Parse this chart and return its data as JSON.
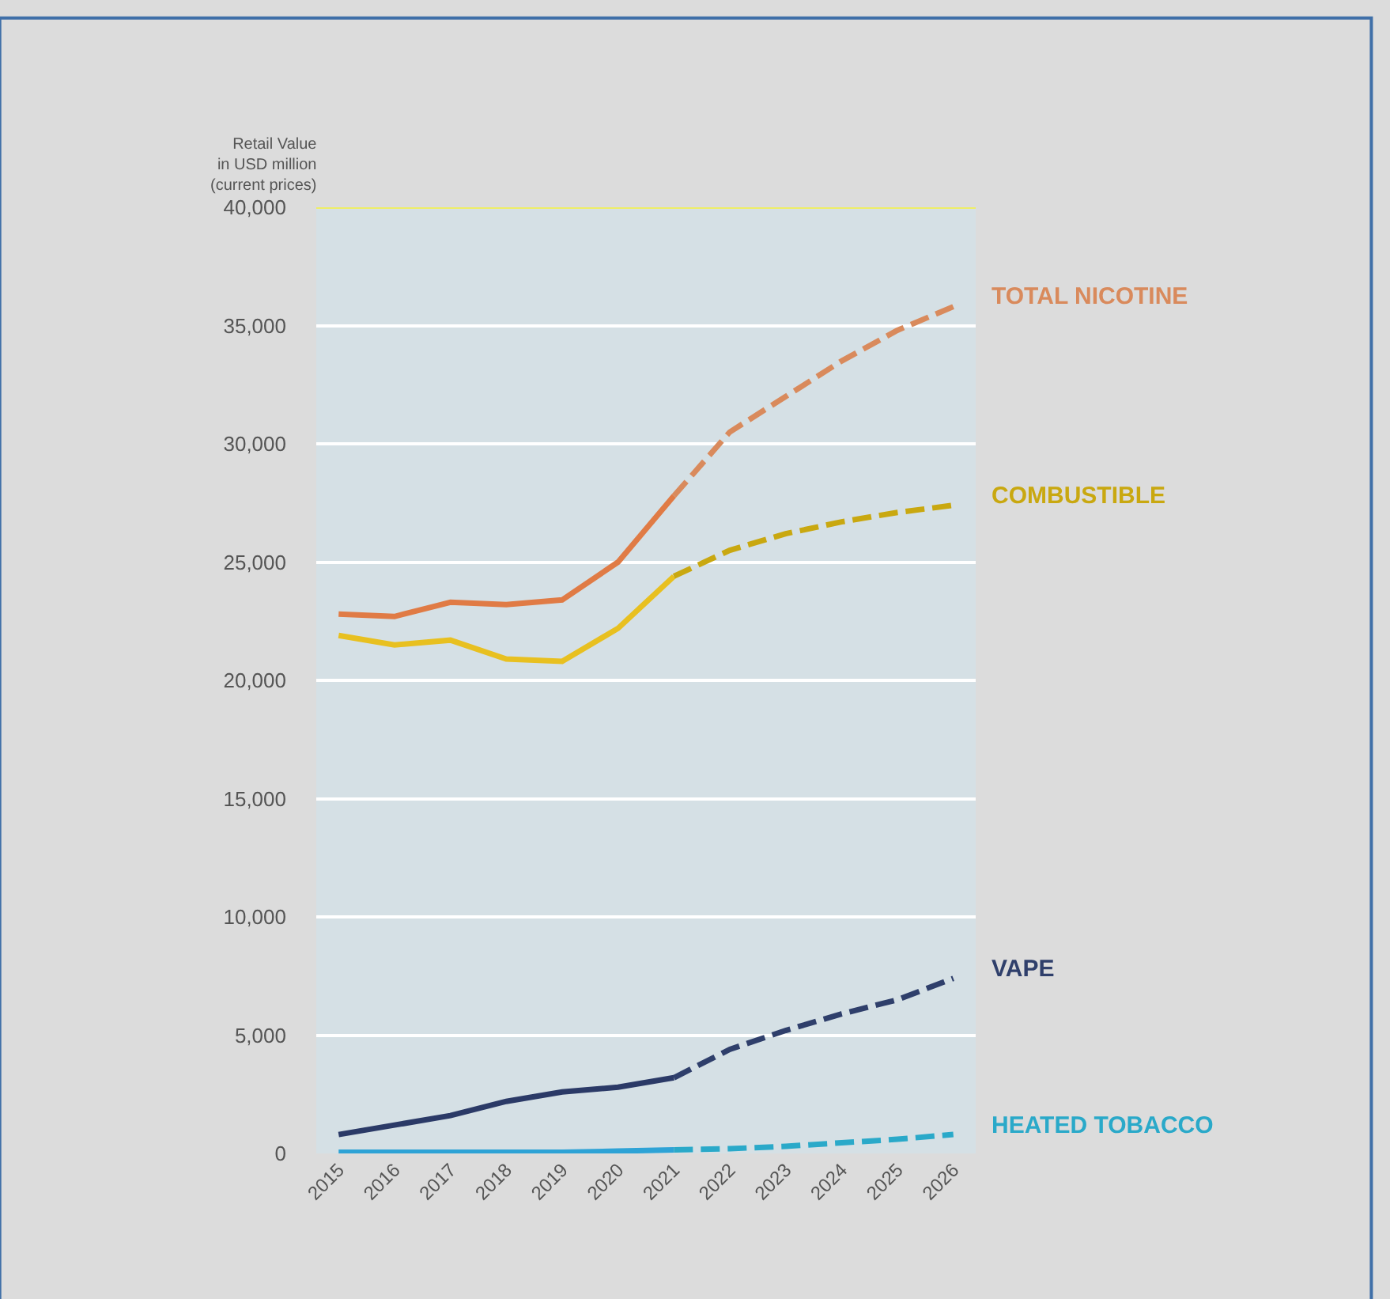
{
  "chart_data": {
    "type": "line",
    "ylabel": "Retail Value\nin USD million\n(current prices)",
    "categories": [
      "2015",
      "2016",
      "2017",
      "2018",
      "2019",
      "2020",
      "2021",
      "2022",
      "2023",
      "2024",
      "2025",
      "2026"
    ],
    "ylim": [
      0,
      40000
    ],
    "yticks": [
      {
        "value": 0,
        "label": "0"
      },
      {
        "value": 5000,
        "label": "5,000"
      },
      {
        "value": 10000,
        "label": "10,000"
      },
      {
        "value": 15000,
        "label": "15,000"
      },
      {
        "value": 20000,
        "label": "20,000"
      },
      {
        "value": 25000,
        "label": "25,000"
      },
      {
        "value": 30000,
        "label": "30,000"
      },
      {
        "value": 35000,
        "label": "35,000"
      },
      {
        "value": 40000,
        "label": "40,000"
      }
    ],
    "grid": "y",
    "legend": false,
    "marker": "none",
    "ref_lines": [
      {
        "axis": "y",
        "value": 40000,
        "color": "#eeee66"
      }
    ],
    "series": [
      {
        "color": "#e07b45",
        "line_style": "solid",
        "values": [
          22800,
          22700,
          23300,
          23200,
          23400,
          25000,
          27800,
          null,
          null,
          null,
          null,
          null
        ]
      },
      {
        "name": "TOTAL NICOTINE",
        "color": "#d98a5c",
        "line_style": "dashed",
        "values": [
          null,
          null,
          null,
          null,
          null,
          null,
          27800,
          30500,
          32000,
          33500,
          34800,
          35800
        ]
      },
      {
        "color": "#e8c020",
        "line_style": "solid",
        "values": [
          21900,
          21500,
          21700,
          20900,
          20800,
          22200,
          24400,
          null,
          null,
          null,
          null,
          null
        ]
      },
      {
        "name": "COMBUSTIBLE",
        "color": "#c9a810",
        "line_style": "dashed",
        "values": [
          null,
          null,
          null,
          null,
          null,
          null,
          24400,
          25500,
          26200,
          26700,
          27100,
          27400
        ]
      },
      {
        "color": "#2b3a67",
        "line_style": "solid",
        "values": [
          800,
          1200,
          1600,
          2200,
          2600,
          2800,
          3200,
          null,
          null,
          null,
          null,
          null
        ]
      },
      {
        "name": "VAPE",
        "color": "#2f3f6b",
        "line_style": "dashed",
        "values": [
          null,
          null,
          null,
          null,
          null,
          null,
          3200,
          4400,
          5200,
          5900,
          6500,
          7400
        ]
      },
      {
        "color": "#2ea3d6",
        "line_style": "solid",
        "values": [
          50,
          50,
          50,
          50,
          50,
          100,
          150,
          null,
          null,
          null,
          null,
          null
        ]
      },
      {
        "name": "HEATED TOBACCO",
        "color": "#2aa9c9",
        "line_style": "dashed",
        "values": [
          null,
          null,
          null,
          null,
          null,
          null,
          150,
          200,
          300,
          450,
          600,
          800
        ]
      }
    ]
  }
}
